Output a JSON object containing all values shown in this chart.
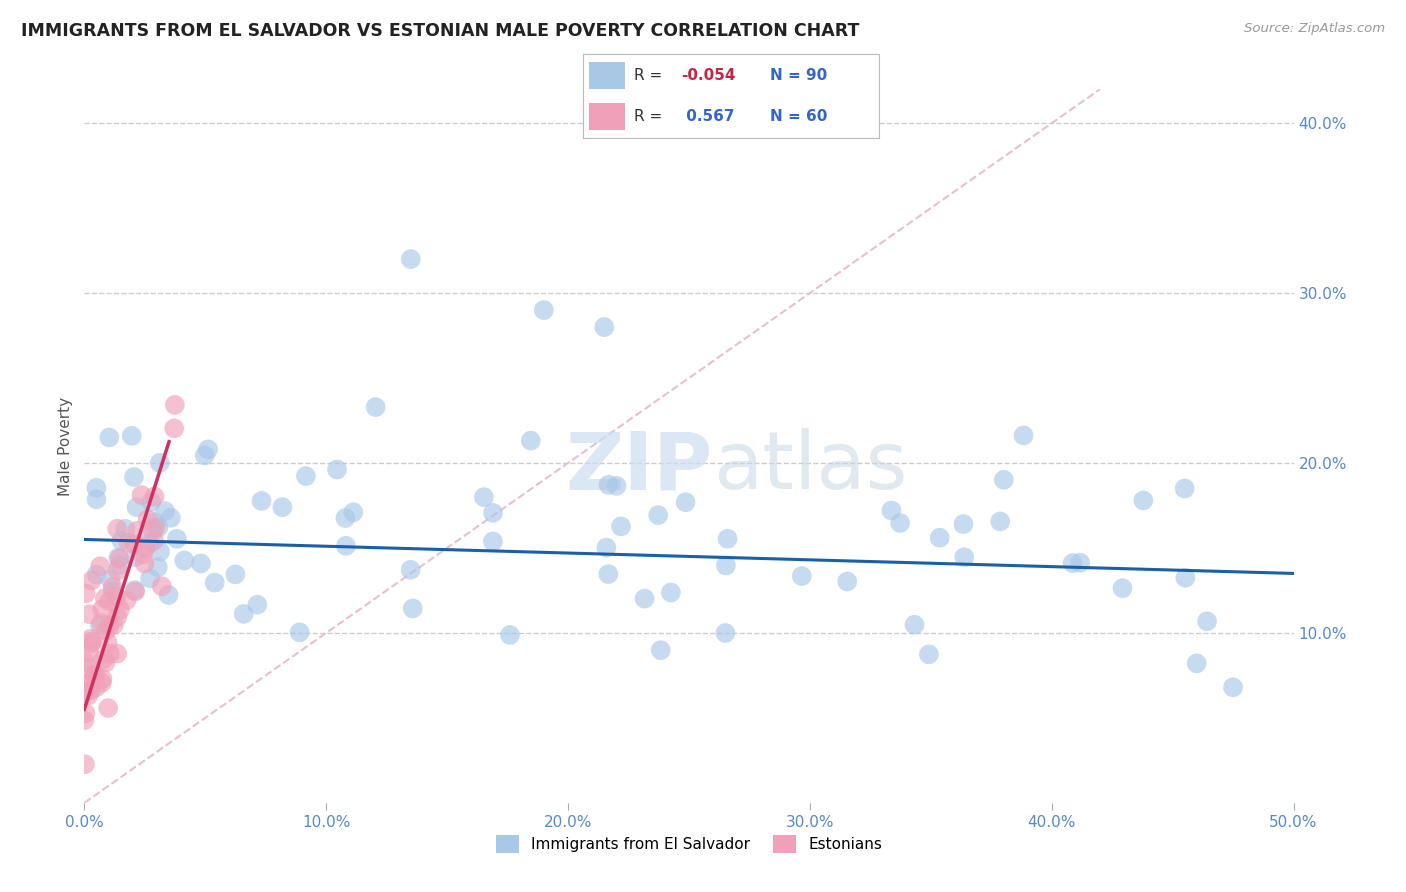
{
  "title": "IMMIGRANTS FROM EL SALVADOR VS ESTONIAN MALE POVERTY CORRELATION CHART",
  "source": "Source: ZipAtlas.com",
  "xlabel_blue": "Immigrants from El Salvador",
  "xlabel_pink": "Estonians",
  "ylabel": "Male Poverty",
  "xlim": [
    0.0,
    0.5
  ],
  "ylim": [
    0.0,
    0.42
  ],
  "xtick_vals": [
    0.0,
    0.1,
    0.2,
    0.3,
    0.4,
    0.5
  ],
  "xtick_labels": [
    "0.0%",
    "10.0%",
    "20.0%",
    "30.0%",
    "40.0%",
    "50.0%"
  ],
  "ytick_vals": [
    0.1,
    0.2,
    0.3,
    0.4
  ],
  "ytick_labels": [
    "10.0%",
    "20.0%",
    "30.0%",
    "40.0%"
  ],
  "legend_r_blue": "-0.054",
  "legend_n_blue": "90",
  "legend_r_pink": "0.567",
  "legend_n_pink": "60",
  "blue_color": "#a8c8e8",
  "pink_color": "#f0a0b8",
  "blue_line_color": "#1a5fa8",
  "pink_line_color": "#d03060",
  "diag_line_color": "#e8c0cc",
  "watermark_zip": "ZIP",
  "watermark_atlas": "atlas",
  "background_color": "#ffffff",
  "grid_color": "#cccccc",
  "tick_color": "#5588cc",
  "title_color": "#222222",
  "source_color": "#999999",
  "legend_r_color_blue": "#cc2244",
  "legend_n_color": "#3366cc",
  "legend_label_color": "#333333"
}
